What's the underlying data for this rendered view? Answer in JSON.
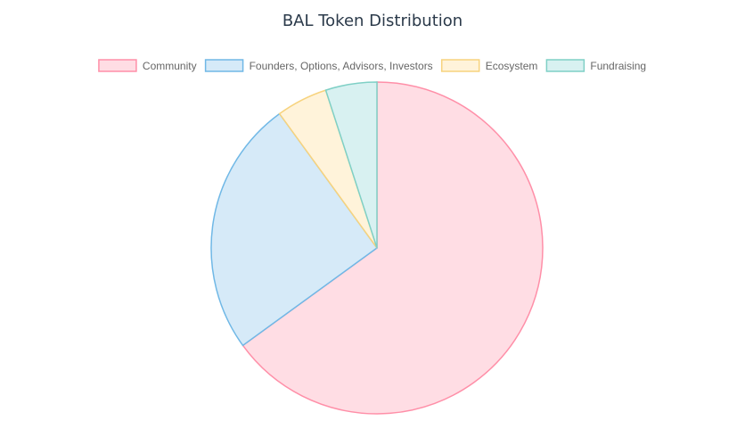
{
  "chart_data": {
    "type": "pie",
    "title": "BAL Token Distribution",
    "categories": [
      "Community",
      "Founders, Options, Advisors, Investors",
      "Ecosystem",
      "Fundraising"
    ],
    "values": [
      65,
      25,
      5,
      5
    ],
    "legend_position": "top",
    "colors": [
      {
        "fill": "#ffdde4",
        "stroke": "#ff8fa8"
      },
      {
        "fill": "#d6eaf8",
        "stroke": "#70b8e6"
      },
      {
        "fill": "#fff3da",
        "stroke": "#f7d37e"
      },
      {
        "fill": "#d8f1f1",
        "stroke": "#7fd0c6"
      }
    ]
  }
}
